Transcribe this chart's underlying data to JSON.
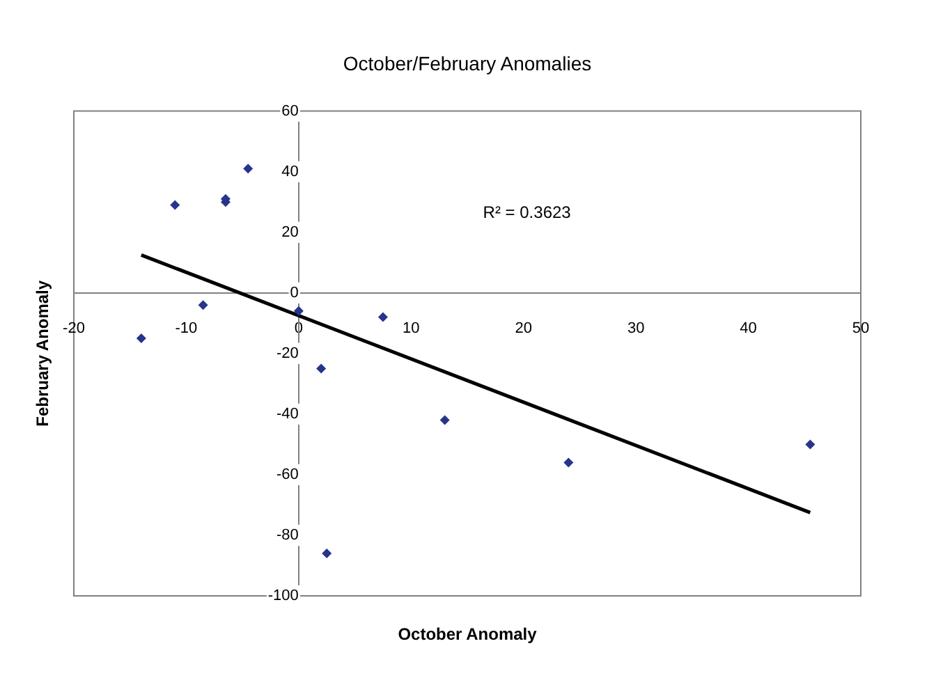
{
  "chart_data": {
    "type": "scatter",
    "title": "October/February Anomalies",
    "xlabel": "October Anomaly",
    "ylabel": "February Anomaly",
    "xlim": [
      -20,
      50
    ],
    "xticks": [
      -20,
      -10,
      0,
      10,
      20,
      30,
      40,
      50
    ],
    "ylim": [
      -100,
      60
    ],
    "yticks": [
      -100,
      -80,
      -60,
      -40,
      -20,
      0,
      20,
      40,
      60
    ],
    "grid": false,
    "legend": false,
    "marker": "diamond",
    "annotations": [
      "R² = 0.3623"
    ],
    "series": [
      {
        "color": "#27348b",
        "x": [
          -14,
          -11,
          -8.5,
          -6.5,
          -6.5,
          -4.5,
          0,
          2,
          2.5,
          7.5,
          13,
          24,
          45.5
        ],
        "values": [
          -15,
          29,
          -4,
          30,
          31,
          41,
          -6,
          -25,
          -86,
          -8,
          -42,
          -56,
          -50
        ]
      },
      {
        "type": "line",
        "color": "#000000",
        "marker": "none",
        "line_style": "solid",
        "x": [
          -14,
          45.5
        ],
        "values": [
          12.5,
          -72.5
        ]
      }
    ]
  }
}
